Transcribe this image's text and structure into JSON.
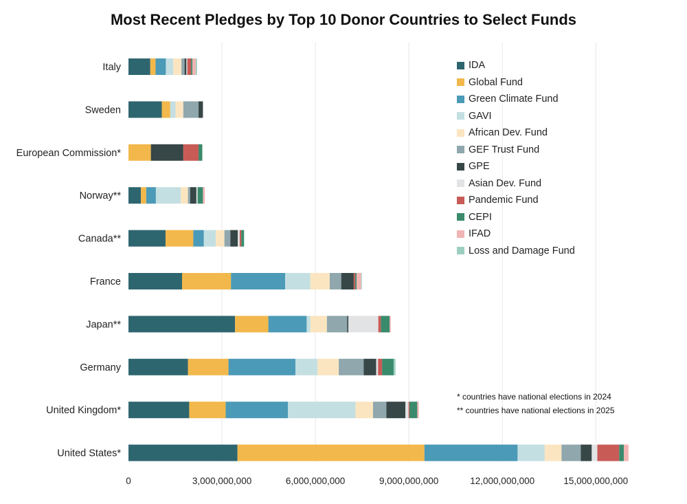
{
  "chart_data": {
    "type": "bar",
    "orientation": "horizontal",
    "stacked": true,
    "title": "Most Recent Pledges by Top 10 Donor Countries to Select Funds",
    "categories": [
      "Italy",
      "Sweden",
      "European Commission*",
      "Norway**",
      "Canada**",
      "France",
      "Japan**",
      "Germany",
      "United Kingdom*",
      "United States*"
    ],
    "xlim": [
      0,
      16000000000
    ],
    "xticks": [
      0,
      3000000000,
      6000000000,
      9000000000,
      12000000000,
      15000000000
    ],
    "xtick_labels": [
      "0",
      "3,000,000,000",
      "6,000,000,000",
      "9,000,000,000",
      "12,000,000,000",
      "15,000,000,000"
    ],
    "grid": "vertical",
    "legend_position": "right",
    "series": [
      {
        "name": "IDA",
        "color": "#2e6670",
        "values": [
          700000000,
          1070000000,
          0,
          400000000,
          1190000000,
          1720000000,
          3420000000,
          1910000000,
          1950000000,
          3500000000
        ]
      },
      {
        "name": "Global Fund",
        "color": "#f2b84b",
        "values": [
          170000000,
          270000000,
          720000000,
          170000000,
          890000000,
          1570000000,
          1070000000,
          1300000000,
          1170000000,
          6000000000
        ]
      },
      {
        "name": "Green Climate Fund",
        "color": "#4b9ab7",
        "values": [
          330000000,
          0,
          0,
          310000000,
          340000000,
          1740000000,
          1230000000,
          2150000000,
          2000000000,
          2990000000
        ]
      },
      {
        "name": "GAVI",
        "color": "#c4dfe2",
        "values": [
          240000000,
          170000000,
          0,
          800000000,
          380000000,
          810000000,
          120000000,
          710000000,
          2170000000,
          870000000
        ]
      },
      {
        "name": "African Dev. Fund",
        "color": "#fbe5c0",
        "values": [
          260000000,
          250000000,
          0,
          230000000,
          280000000,
          620000000,
          530000000,
          680000000,
          560000000,
          540000000
        ]
      },
      {
        "name": "GEF Trust Fund",
        "color": "#8fa7ad",
        "values": [
          100000000,
          490000000,
          0,
          70000000,
          190000000,
          370000000,
          650000000,
          800000000,
          430000000,
          620000000
        ]
      },
      {
        "name": "GPE",
        "color": "#374646",
        "values": [
          60000000,
          140000000,
          1040000000,
          200000000,
          240000000,
          400000000,
          40000000,
          400000000,
          610000000,
          350000000
        ]
      },
      {
        "name": "Asian Dev. Fund",
        "color": "#e2e3e4",
        "values": [
          30000000,
          0,
          0,
          40000000,
          60000000,
          0,
          960000000,
          60000000,
          100000000,
          180000000
        ]
      },
      {
        "name": "Pandemic Fund",
        "color": "#c95b57",
        "values": [
          120000000,
          0,
          490000000,
          0,
          50000000,
          50000000,
          80000000,
          130000000,
          30000000,
          700000000
        ]
      },
      {
        "name": "CEPI",
        "color": "#3a8a6c",
        "values": [
          40000000,
          0,
          120000000,
          170000000,
          90000000,
          40000000,
          280000000,
          370000000,
          250000000,
          150000000
        ]
      },
      {
        "name": "IFAD",
        "color": "#f0b5b3",
        "values": [
          110000000,
          0,
          0,
          60000000,
          0,
          150000000,
          40000000,
          0,
          50000000,
          150000000
        ]
      },
      {
        "name": "Loss and Damage Fund",
        "color": "#9ccfc0",
        "values": [
          40000000,
          0,
          0,
          0,
          0,
          20000000,
          0,
          60000000,
          0,
          0
        ]
      }
    ]
  },
  "notes": [
    "* countries have national elections in 2024",
    "** countries have national elections in 2025"
  ]
}
